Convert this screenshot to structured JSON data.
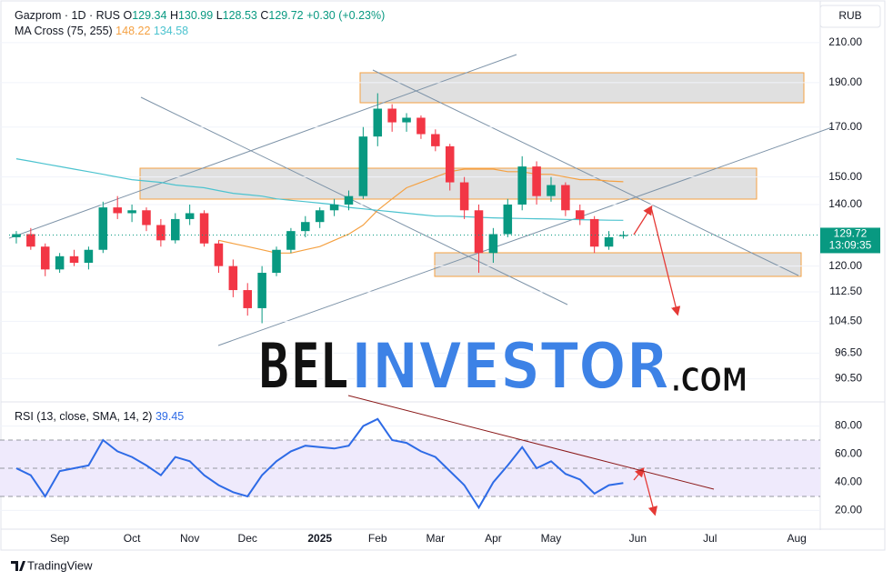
{
  "header": {
    "symbol": "Gazprom · 1D · RUS",
    "ohlc_labels": [
      "O",
      "H",
      "L",
      "C"
    ],
    "change": "+0.30 (+0.23%)",
    "currency": "RUB",
    "countdown": "13:09:35"
  },
  "watermark": {
    "part1": "BEL",
    "part2": "INVESTOR",
    "part3": ".COM"
  },
  "footer": {
    "brand": "TradingView"
  },
  "chart_data": [
    {
      "type": "candlestick",
      "indicator": "MA Cross (75, 255)",
      "categories": [
        null,
        null,
        null,
        "Sep",
        null,
        null,
        null,
        null,
        "Oct",
        null,
        null,
        null,
        "Nov",
        null,
        null,
        null,
        "Dec",
        null,
        null,
        null,
        null,
        "2025",
        null,
        null,
        null,
        "Feb",
        null,
        null,
        null,
        "Mar",
        null,
        null,
        null,
        "Apr",
        null,
        null,
        null,
        "May",
        null,
        null,
        null,
        null,
        null,
        "Jun",
        null,
        null,
        null,
        null,
        "Jul",
        null,
        null,
        null,
        null,
        null,
        "Aug",
        null
      ],
      "open": [
        129,
        130,
        126,
        119,
        123,
        121,
        125,
        139,
        137,
        138,
        133,
        128,
        135,
        137,
        127,
        120,
        113,
        108,
        118,
        125,
        131,
        134,
        138,
        140,
        143,
        166,
        178,
        172,
        174,
        167,
        162,
        148,
        138,
        124,
        130,
        140,
        154,
        143,
        147,
        138,
        135,
        126,
        129.34,
        null,
        null,
        null,
        null,
        null,
        null,
        null,
        null,
        null,
        null,
        null,
        null,
        null
      ],
      "high": [
        131,
        132,
        127,
        124,
        125,
        126,
        141,
        143,
        140,
        139,
        135,
        137,
        140,
        138,
        128,
        122,
        115,
        120,
        126,
        132,
        136,
        139,
        142,
        145,
        170,
        185,
        180,
        176,
        175,
        169,
        163,
        150,
        140,
        132,
        142,
        158,
        156,
        150,
        148,
        140,
        136,
        131,
        130.99,
        null,
        null,
        null,
        null,
        null,
        null,
        null,
        null,
        null,
        null,
        null,
        null,
        null
      ],
      "low": [
        127,
        125,
        117,
        118,
        120,
        119,
        124,
        135,
        134,
        131,
        126,
        127,
        133,
        126,
        118,
        111,
        106,
        104,
        117,
        124,
        129,
        132,
        136,
        138,
        142,
        162,
        168,
        168,
        165,
        160,
        145,
        135,
        118,
        121,
        129,
        138,
        140,
        141,
        136,
        133,
        124,
        125,
        128.53,
        null,
        null,
        null,
        null,
        null,
        null,
        null,
        null,
        null,
        null,
        null,
        null,
        null
      ],
      "close": [
        130,
        126,
        119,
        123,
        121,
        125,
        139,
        137,
        138,
        133,
        128,
        135,
        137,
        127,
        120,
        113,
        108,
        118,
        125,
        131,
        134,
        138,
        140,
        143,
        166,
        178,
        172,
        174,
        167,
        162,
        148,
        138,
        124,
        130,
        140,
        154,
        143,
        147,
        138,
        135,
        126,
        129,
        129.72,
        null,
        null,
        null,
        null,
        null,
        null,
        null,
        null,
        null,
        null,
        null,
        null,
        null
      ],
      "up_color": "#089981",
      "down_color": "#f23645",
      "log_scale": true,
      "ylim": [
        85.8,
        228.4
      ],
      "yticks": [
        {
          "value": 210,
          "label": "210.00"
        },
        {
          "value": 190,
          "label": "190.00"
        },
        {
          "value": 170,
          "label": "170.00"
        },
        {
          "value": 150,
          "label": "150.00"
        },
        {
          "value": 140,
          "label": "140.00"
        },
        {
          "value": 120,
          "label": "120.00"
        },
        {
          "value": 112.5,
          "label": "112.50"
        },
        {
          "value": 104.5,
          "label": "104.50"
        },
        {
          "value": 96.5,
          "label": "96.50"
        },
        {
          "value": 90.5,
          "label": "90.50"
        }
      ],
      "series": [
        {
          "color": "#f5a142",
          "values": [
            null,
            null,
            null,
            null,
            null,
            null,
            null,
            null,
            null,
            null,
            null,
            null,
            null,
            null,
            128,
            127,
            126,
            125,
            124,
            124,
            125,
            126,
            128,
            130,
            133,
            138,
            142,
            146,
            148,
            150,
            152,
            153,
            153,
            153,
            152,
            152,
            151,
            151,
            150,
            149,
            149,
            148.5,
            148.22,
            null,
            null,
            null,
            null,
            null,
            null,
            null,
            null,
            null,
            null,
            null,
            null,
            null
          ]
        },
        {
          "color": "#4cc3cf",
          "values": [
            157,
            156,
            155,
            154,
            153,
            152,
            151,
            150,
            149,
            148.5,
            148,
            147,
            146.5,
            146,
            145,
            144,
            143.5,
            143,
            142,
            141.5,
            141,
            140.5,
            140,
            139,
            138.5,
            138,
            137.5,
            137,
            136.5,
            136,
            136,
            135.8,
            135.6,
            135.4,
            135.3,
            135.2,
            135.1,
            135,
            134.9,
            134.8,
            134.7,
            134.6,
            134.58,
            null,
            null,
            null,
            null,
            null,
            null,
            null,
            null,
            null,
            null,
            null,
            null,
            null
          ]
        }
      ]
    },
    {
      "type": "line",
      "title": "RSI (13, close, SMA, 14, 2)",
      "color": "#2e6be6",
      "values": [
        50,
        45,
        30,
        48,
        50,
        52,
        70,
        62,
        58,
        52,
        45,
        58,
        55,
        45,
        38,
        33,
        30,
        45,
        55,
        62,
        66,
        65,
        64,
        66,
        80,
        85,
        70,
        68,
        62,
        58,
        48,
        38,
        22,
        40,
        52,
        65,
        50,
        55,
        46,
        42,
        32,
        38,
        39.45,
        null,
        null,
        null,
        null,
        null,
        null,
        null,
        null,
        null,
        null,
        null,
        null,
        null
      ],
      "ylim": [
        8,
        92
      ],
      "yticks": [
        {
          "value": 80,
          "label": "80.00"
        },
        {
          "value": 60,
          "label": "60.00"
        },
        {
          "value": 40,
          "label": "40.00"
        },
        {
          "value": 20,
          "label": "20.00"
        }
      ],
      "bands": [
        30,
        50,
        70
      ],
      "band_fill": "#efeafc"
    }
  ]
}
